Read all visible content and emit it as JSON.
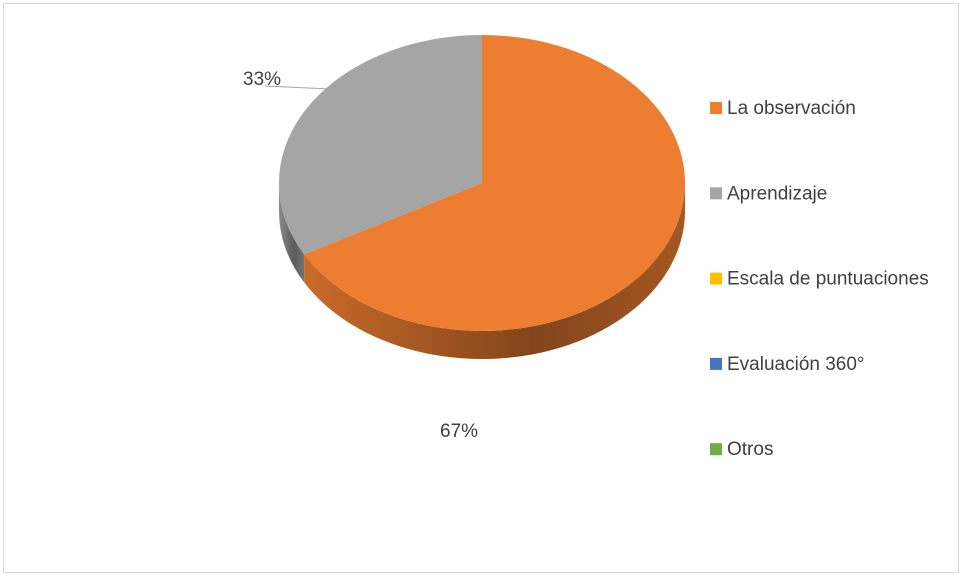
{
  "chart_data": {
    "type": "pie",
    "categories": [
      "La observación",
      "Aprendizaje",
      "Escala de puntuaciones",
      "Evaluación 360°",
      "Otros"
    ],
    "values": [
      67,
      33,
      0,
      0,
      0
    ],
    "value_labels": [
      "67%",
      "33%",
      null,
      null,
      null
    ],
    "colors": [
      "#ed7d31",
      "#a5a5a5",
      "#ffc000",
      "#4472c4",
      "#70ad47"
    ],
    "legend": "right"
  }
}
